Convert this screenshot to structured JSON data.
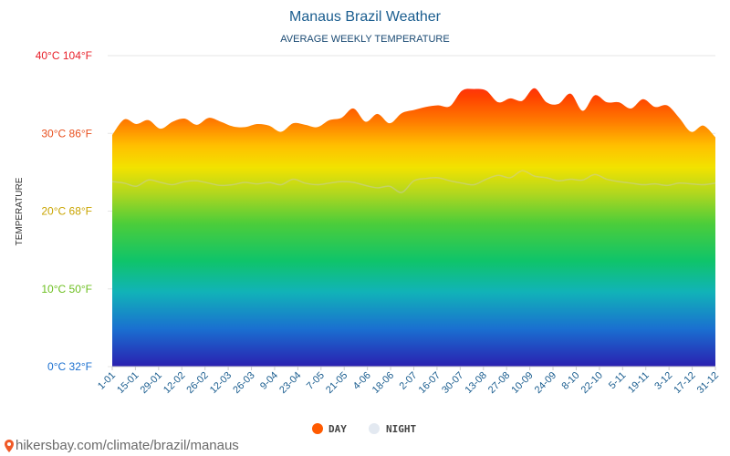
{
  "chart_data": {
    "type": "area",
    "title": "Manaus Brazil Weather",
    "subtitle": "AVERAGE WEEKLY TEMPERATURE",
    "ylabel": "TEMPERATURE",
    "ylim": [
      0,
      40
    ],
    "yticks": [
      {
        "value": 40,
        "label": "40°C 104°F",
        "color": "#e8202a"
      },
      {
        "value": 30,
        "label": "30°C 86°F",
        "color": "#e8501f"
      },
      {
        "value": 20,
        "label": "20°C 68°F",
        "color": "#c9a400"
      },
      {
        "value": 10,
        "label": "10°C 50°F",
        "color": "#6cbf1f"
      },
      {
        "value": 0,
        "label": "0°C 32°F",
        "color": "#1a6fd0"
      }
    ],
    "x_labels": [
      "1-01",
      "15-01",
      "29-01",
      "12-02",
      "26-02",
      "12-03",
      "26-03",
      "9-04",
      "23-04",
      "7-05",
      "21-05",
      "4-06",
      "18-06",
      "2-07",
      "16-07",
      "30-07",
      "13-08",
      "27-08",
      "10-09",
      "24-09",
      "8-10",
      "22-10",
      "5-11",
      "19-11",
      "3-12",
      "17-12",
      "31-12"
    ],
    "series": [
      {
        "name": "DAY",
        "color": "#ff5a00",
        "values": [
          29.8,
          31.8,
          31.2,
          31.7,
          30.6,
          31.5,
          31.9,
          31.1,
          32.0,
          31.5,
          30.9,
          30.8,
          31.2,
          31.0,
          30.2,
          31.3,
          31.1,
          30.8,
          31.7,
          32.0,
          33.2,
          31.5,
          32.5,
          31.3,
          32.6,
          33.0,
          33.4,
          33.6,
          33.5,
          35.5,
          35.7,
          35.5,
          34.0,
          34.5,
          34.2,
          35.8,
          34.0,
          33.8,
          35.1,
          32.9,
          34.9,
          34.0,
          34.0,
          33.2,
          34.4,
          33.4,
          33.6,
          32.0,
          30.2,
          31.0,
          29.5
        ]
      },
      {
        "name": "NIGHT",
        "color": "#e3e9f1",
        "values": [
          23.8,
          23.6,
          23.2,
          24.0,
          23.7,
          23.4,
          23.8,
          23.9,
          23.6,
          23.3,
          23.4,
          23.7,
          23.5,
          23.7,
          23.4,
          24.1,
          23.6,
          23.4,
          23.6,
          23.8,
          23.7,
          23.3,
          23.0,
          23.2,
          22.4,
          23.9,
          24.2,
          24.3,
          23.9,
          23.6,
          23.4,
          24.1,
          24.6,
          24.3,
          25.2,
          24.5,
          24.3,
          23.9,
          24.1,
          24.0,
          24.7,
          24.1,
          23.8,
          23.6,
          23.4,
          23.5,
          23.3,
          23.6,
          23.5,
          23.4,
          23.6
        ]
      }
    ],
    "grid": true,
    "legend_position": "bottom-center"
  },
  "credit": "hikersbay.com/climate/brazil/manaus"
}
